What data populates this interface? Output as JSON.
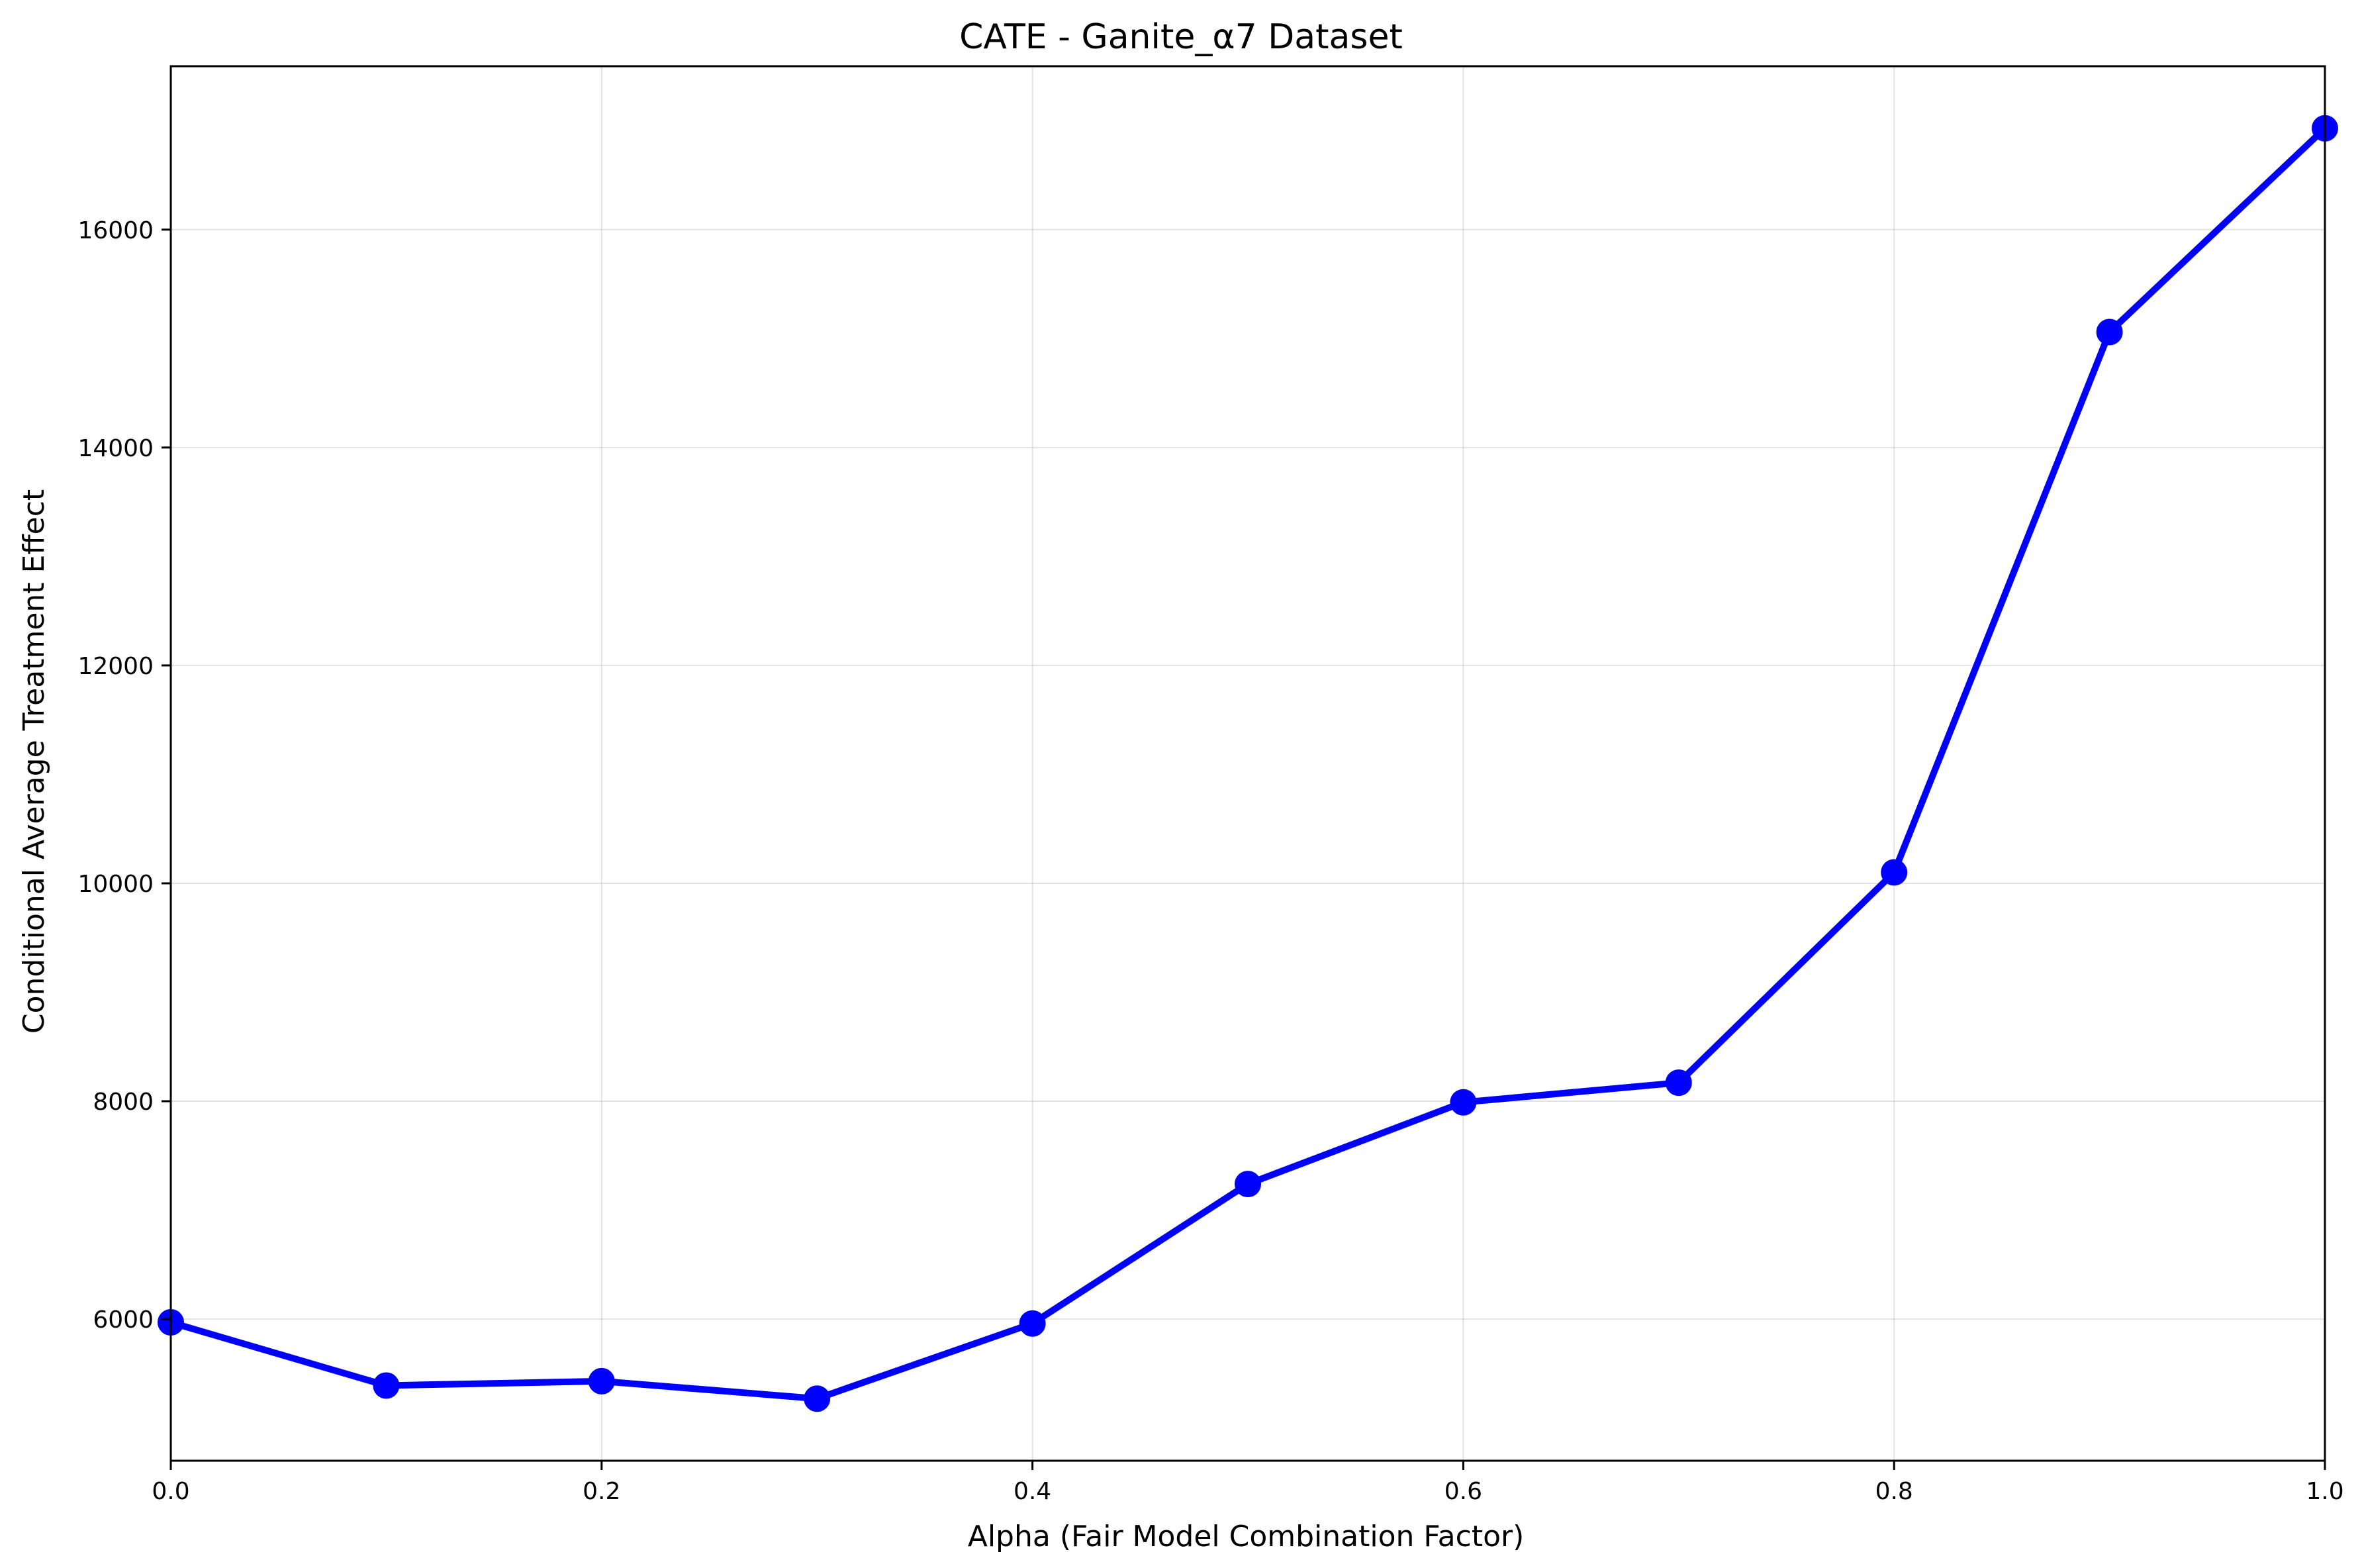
{
  "chart_data": {
    "type": "line",
    "title": "CATE - Ganite_α7 Dataset",
    "xlabel": "Alpha (Fair Model Combination Factor)",
    "ylabel": "Conditional Average Treatment Effect",
    "xlim": [
      0.0,
      1.0
    ],
    "ylim": [
      4700,
      17500
    ],
    "x_ticks": [
      0.0,
      0.2,
      0.4,
      0.6,
      0.8,
      1.0
    ],
    "x_tick_labels": [
      "0.0",
      "0.2",
      "0.4",
      "0.6",
      "0.8",
      "1.0"
    ],
    "y_ticks": [
      6000,
      8000,
      10000,
      12000,
      14000,
      16000
    ],
    "y_tick_labels": [
      "6000",
      "8000",
      "10000",
      "12000",
      "14000",
      "16000"
    ],
    "grid": true,
    "series": [
      {
        "color": "#0000ff",
        "marker": "circle",
        "x": [
          0.0,
          0.1,
          0.2,
          0.3,
          0.4,
          0.5,
          0.6,
          0.7,
          0.8,
          0.9,
          1.0
        ],
        "y": [
          5970,
          5390,
          5430,
          5270,
          5960,
          7240,
          7990,
          8170,
          10100,
          15060,
          16930
        ]
      }
    ]
  }
}
